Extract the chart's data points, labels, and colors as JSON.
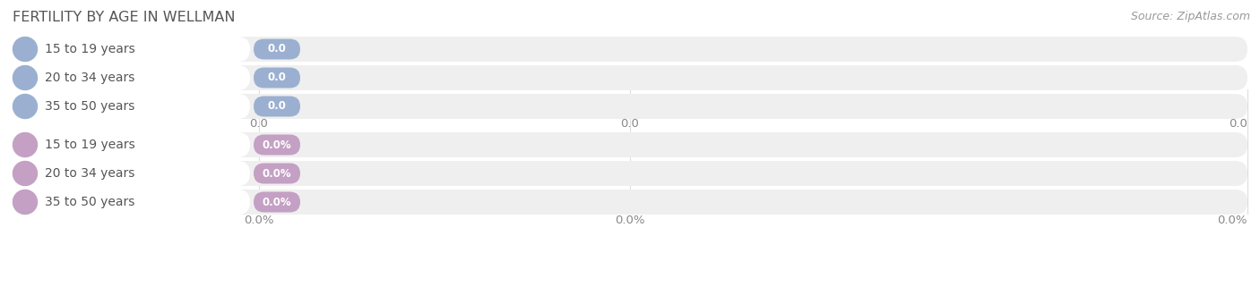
{
  "title": "FERTILITY BY AGE IN WELLMAN",
  "source": "Source: ZipAtlas.com",
  "top_section": {
    "categories": [
      "15 to 19 years",
      "20 to 34 years",
      "35 to 50 years"
    ],
    "values": [
      0.0,
      0.0,
      0.0
    ],
    "bar_color": "#9bb0d0",
    "value_label_bg": "#9bb0d0",
    "tick_label": "0.0",
    "bar_bg_color": "#efefef"
  },
  "bottom_section": {
    "categories": [
      "15 to 19 years",
      "20 to 34 years",
      "35 to 50 years"
    ],
    "values": [
      0.0,
      0.0,
      0.0
    ],
    "bar_color": "#c4a0c4",
    "value_label_bg": "#c4a0c4",
    "tick_label": "0.0%",
    "bar_bg_color": "#efefef"
  },
  "background_color": "#ffffff",
  "title_color": "#555555",
  "title_fontsize": 11.5,
  "source_fontsize": 9,
  "tick_fontsize": 9.5,
  "label_fontsize": 10,
  "grid_color": "#dddddd",
  "tick_color": "#888888"
}
